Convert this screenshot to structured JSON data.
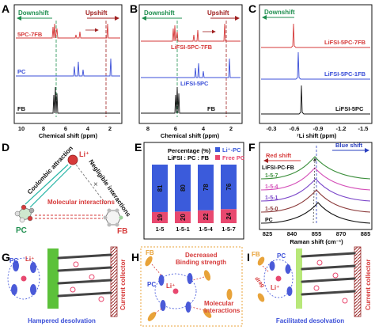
{
  "panels": {
    "A": {
      "letter": "A",
      "downshift": "Downshift",
      "upshift": "Upshift",
      "traces": [
        "5PC-7FB",
        "PC",
        "FB"
      ],
      "xlabel": "Chemical shift (ppm)",
      "ticks": [
        "10",
        "8",
        "6",
        "4",
        "2"
      ]
    },
    "B": {
      "letter": "B",
      "downshift": "Downshift",
      "upshift": "Upshift",
      "traces": [
        "LiFSI-5PC-7FB",
        "LiFSI-5PC",
        "FB"
      ],
      "xlabel": "Chemical shift (ppm)",
      "ticks": [
        "8",
        "6",
        "4",
        "2"
      ]
    },
    "C": {
      "letter": "C",
      "downshift": "Downshift",
      "traces": [
        "LiFSI-5PC-7FB",
        "LiFSI-5PC-1FB",
        "LiFSI-5PC"
      ],
      "xlabel": "⁷Li shift (ppm)",
      "ticks": [
        "-0.3",
        "-0.6",
        "-0.9",
        "-1.2",
        "-1.5"
      ]
    },
    "D": {
      "letter": "D",
      "li": "Li⁺",
      "coulombic": "Coulombic attraction",
      "negligible": "Negligible interactions",
      "molecular": "Molecular interactions",
      "pc": "PC",
      "fb": "FB"
    },
    "E": {
      "letter": "E",
      "header_line1": "Percentage (%)",
      "header_line2": "LiFSI : PC : FB",
      "legend_li": "Li⁺-PC",
      "legend_free": "Free PC"
    },
    "F": {
      "letter": "F",
      "red_shift": "Red shift",
      "blue_shift": "Blue shift",
      "traces": [
        "LiFSI-PC-FB",
        "1-5-7",
        "1-5-4",
        "1-5-1",
        "1-5-0",
        "PC"
      ],
      "ticks": [
        "825",
        "840",
        "855",
        "870",
        "885"
      ],
      "xlabel": "Raman shift (cm⁻¹)"
    },
    "G": {
      "letter": "G",
      "pc": "PC",
      "li": "Li⁺",
      "collector": "Current collector",
      "caption": "Hampered desolvation"
    },
    "H": {
      "letter": "H",
      "fb": "FB",
      "pc": "PC",
      "li": "Li⁺",
      "binding_line1": "Decreased",
      "binding_line2": "Binding strength",
      "molecular_line1": "Molecular",
      "molecular_line2": "interactions"
    },
    "I": {
      "letter": "I",
      "fb": "FB",
      "pc": "PC",
      "li": "Li⁺",
      "drag": "drag",
      "collector": "Current collector",
      "caption": "Facilitated desolvation"
    }
  },
  "chart_data": [
    {
      "type": "bar",
      "panel": "E",
      "categories": [
        "1-5",
        "1-5-1",
        "1-5-4",
        "1-5-7"
      ],
      "series": [
        {
          "name": "Li⁺-PC",
          "values": [
            81,
            80,
            78,
            76
          ],
          "color": "#3b5bdb"
        },
        {
          "name": "Free PC",
          "values": [
            19,
            20,
            22,
            24
          ],
          "color": "#e8486f"
        }
      ],
      "ylim": [
        0,
        100
      ],
      "stacked": true
    }
  ],
  "colors": {
    "red": "#d63a3a",
    "blue": "#3b4fd8",
    "black": "#111111",
    "green": "#3c8f3c",
    "magenta": "#d44fb8",
    "purple": "#7a45c9",
    "brown": "#8b3a3a",
    "orange_molecule": "#e8a33a",
    "teal": "#26b5a5"
  }
}
